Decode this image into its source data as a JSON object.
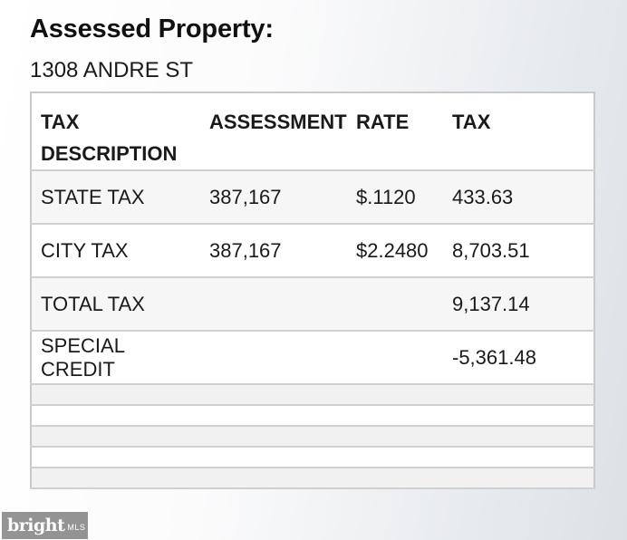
{
  "heading": "Assessed Property:",
  "address": "1308 ANDRE ST",
  "table": {
    "headers": {
      "desc_line1": "TAX",
      "desc_line2": "DESCRIPTION",
      "assessment": "ASSESSMENT",
      "rate": "RATE",
      "tax": "TAX"
    },
    "rows": [
      {
        "description": "STATE TAX",
        "assessment": "387,167",
        "rate": "$.1120",
        "tax": "433.63"
      },
      {
        "description": "CITY TAX",
        "assessment": "387,167",
        "rate": "$2.2480",
        "tax": "8,703.51"
      },
      {
        "description": "TOTAL TAX",
        "assessment": "",
        "rate": "",
        "tax": "9,137.14"
      },
      {
        "description": "SPECIAL CREDIT",
        "assessment": "",
        "rate": "",
        "tax": "-5,361.48"
      }
    ]
  },
  "watermark": {
    "brand": "bright",
    "suffix": "MLS"
  }
}
